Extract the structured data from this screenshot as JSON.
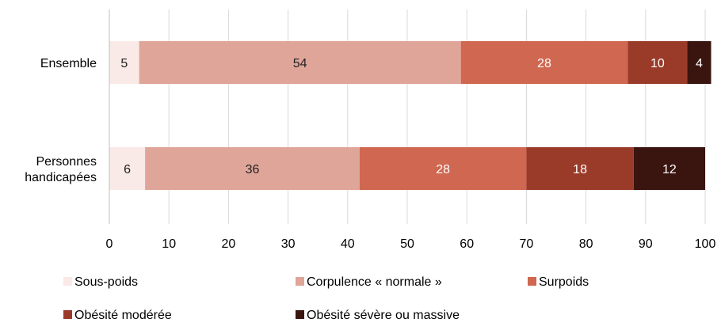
{
  "chart_data": {
    "type": "bar",
    "orientation": "horizontal",
    "stacked": true,
    "categories": [
      "Ensemble",
      "Personnes handicapées"
    ],
    "category_label_lines": [
      [
        "Ensemble"
      ],
      [
        "Personnes",
        "handicapées"
      ]
    ],
    "series": [
      {
        "name": "Sous-poids",
        "values": [
          5,
          6
        ],
        "labels": [
          "5",
          "6"
        ],
        "color": "#f9e9e7",
        "label_color": "#222222"
      },
      {
        "name": "Corpulence « normale »",
        "values": [
          54,
          36
        ],
        "labels": [
          "54",
          "36"
        ],
        "color": "#e0a599",
        "label_color": "#222222"
      },
      {
        "name": "Surpoids",
        "values": [
          28,
          28
        ],
        "labels": [
          "28",
          "28"
        ],
        "color": "#d06750",
        "label_color": "#ffffff"
      },
      {
        "name": "Obésité modérée",
        "values": [
          10,
          18
        ],
        "labels": [
          "10",
          "18"
        ],
        "color": "#9a3b2a",
        "label_color": "#ffffff"
      },
      {
        "name": "Obésité sévère ou massive",
        "values": [
          4,
          12
        ],
        "labels": [
          "4",
          "12"
        ],
        "color": "#3a1510",
        "label_color": "#ffffff"
      }
    ],
    "xlim": [
      0,
      100
    ],
    "xticks": [
      0,
      10,
      20,
      30,
      40,
      50,
      60,
      70,
      80,
      90,
      100
    ],
    "grid": "vertical",
    "legend": "bottom",
    "title": "",
    "xlabel": "",
    "ylabel": ""
  }
}
